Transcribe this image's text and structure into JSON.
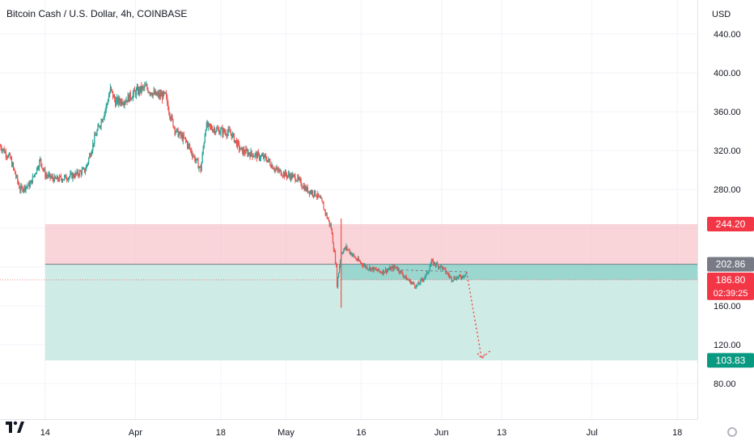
{
  "header": {
    "title": "Bitcoin Cash / U.S. Dollar, 4h, COINBASE"
  },
  "axis": {
    "currency": "USD",
    "y_ticks": [
      "440.00",
      "400.00",
      "360.00",
      "320.00",
      "280.00",
      "160.00",
      "120.00",
      "80.00"
    ],
    "x_ticks": [
      "14",
      "Apr",
      "18",
      "May",
      "16",
      "Jun",
      "13",
      "Jul",
      "18"
    ]
  },
  "badges": {
    "stop_price": "244.20",
    "entry_price": "202.86",
    "last_price": "186.80",
    "countdown": "02:39:25",
    "target_price": "103.83"
  },
  "colors": {
    "stop_zone": "#f7c5cb",
    "profit_zone": "#c7e8e0",
    "up": "#26a69a",
    "down": "#ef5350",
    "projection": "#ef5350",
    "stop_badge": "#f23645",
    "entry_badge": "#787b86",
    "last_badge": "#f23645",
    "target_badge": "#089981"
  },
  "chart_data": {
    "type": "candlestick",
    "title": "Bitcoin Cash / U.S. Dollar, 4h, COINBASE",
    "y_unit": "USD",
    "ylim": [
      60,
      475
    ],
    "x_start": "2022-03-05",
    "x_end": "2022-07-22",
    "grid": true,
    "price_path": [
      [
        "2022-03-05",
        325
      ],
      [
        "2022-03-07",
        312
      ],
      [
        "2022-03-09",
        280
      ],
      [
        "2022-03-11",
        285
      ],
      [
        "2022-03-13",
        310
      ],
      [
        "2022-03-14",
        295
      ],
      [
        "2022-03-16",
        290
      ],
      [
        "2022-03-18",
        292
      ],
      [
        "2022-03-20",
        295
      ],
      [
        "2022-03-22",
        300
      ],
      [
        "2022-03-24",
        335
      ],
      [
        "2022-03-26",
        362
      ],
      [
        "2022-03-27",
        383
      ],
      [
        "2022-03-28",
        370
      ],
      [
        "2022-03-30",
        372
      ],
      [
        "2022-04-01",
        380
      ],
      [
        "2022-04-03",
        385
      ],
      [
        "2022-04-05",
        377
      ],
      [
        "2022-04-07",
        376
      ],
      [
        "2022-04-08",
        355
      ],
      [
        "2022-04-09",
        340
      ],
      [
        "2022-04-11",
        330
      ],
      [
        "2022-04-13",
        310
      ],
      [
        "2022-04-14",
        300
      ],
      [
        "2022-04-15",
        345
      ],
      [
        "2022-04-18",
        340
      ],
      [
        "2022-04-20",
        338
      ],
      [
        "2022-04-22",
        320
      ],
      [
        "2022-04-25",
        315
      ],
      [
        "2022-04-27",
        312
      ],
      [
        "2022-04-29",
        300
      ],
      [
        "2022-05-01",
        295
      ],
      [
        "2022-05-03",
        292
      ],
      [
        "2022-05-05",
        280
      ],
      [
        "2022-05-07",
        275
      ],
      [
        "2022-05-08",
        268
      ],
      [
        "2022-05-10",
        240
      ],
      [
        "2022-05-11",
        200
      ],
      [
        "2022-05-11",
        175
      ],
      [
        "2022-05-12",
        215
      ],
      [
        "2022-05-13",
        220
      ],
      [
        "2022-05-15",
        208
      ],
      [
        "2022-05-17",
        200
      ],
      [
        "2022-05-20",
        195
      ],
      [
        "2022-05-23",
        200
      ],
      [
        "2022-05-25",
        188
      ],
      [
        "2022-05-27",
        180
      ],
      [
        "2022-05-29",
        192
      ],
      [
        "2022-05-30",
        205
      ],
      [
        "2022-06-01",
        200
      ],
      [
        "2022-06-03",
        188
      ],
      [
        "2022-06-05",
        190
      ],
      [
        "2022-06-06",
        194
      ]
    ],
    "position": {
      "side": "short",
      "start": "2022-03-14",
      "end": "2022-07-22",
      "entry": 202.86,
      "stop": 244.2,
      "target": 103.83
    },
    "last_price": 186.8,
    "projection_path": [
      [
        "2022-06-06",
        195
      ],
      [
        "2022-06-07",
        165
      ],
      [
        "2022-06-09",
        106
      ],
      [
        "2022-06-11",
        115
      ]
    ]
  }
}
